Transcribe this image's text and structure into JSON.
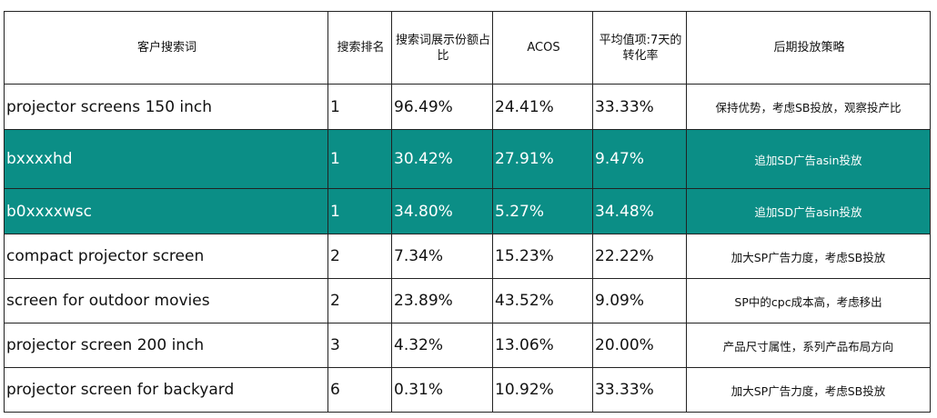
{
  "headers": [
    "客户搜索词",
    "搜索排名",
    "搜索词展示份额占比",
    "ACOS",
    "平均值项:7天的转化率",
    "后期投放策略"
  ],
  "rows": [
    {
      "term": "projector screens 150 inch",
      "rank": "1",
      "share": "96.49%",
      "acos": "24.41%",
      "cvr": "33.33%",
      "strategy": "保持优势，考虑SB投放，观察投产比",
      "highlight": false
    },
    {
      "term": "bxxxxhd",
      "rank": "1",
      "share": "30.42%",
      "acos": "27.91%",
      "cvr": "9.47%",
      "strategy": "追加SD广告asin投放",
      "highlight": true
    },
    {
      "term": "b0xxxxwsc",
      "rank": "1",
      "share": "34.80%",
      "acos": "5.27%",
      "cvr": "34.48%",
      "strategy": "追加SD广告asin投放",
      "highlight": true
    },
    {
      "term": "compact projector screen",
      "rank": "2",
      "share": "7.34%",
      "acos": "15.23%",
      "cvr": "22.22%",
      "strategy": "加大SP广告力度，考虑SB投放",
      "highlight": false
    },
    {
      "term": "screen for outdoor movies",
      "rank": "2",
      "share": "23.89%",
      "acos": "43.52%",
      "cvr": "9.09%",
      "strategy": "SP中的cpc成本高，考虑移出",
      "highlight": false
    },
    {
      "term": "projector screen 200 inch",
      "rank": "3",
      "share": "4.32%",
      "acos": "13.06%",
      "cvr": "20.00%",
      "strategy": "产品尺寸属性，系列产品布局方向",
      "highlight": false
    },
    {
      "term": "projector screen for backyard",
      "rank": "6",
      "share": "0.31%",
      "acos": "10.92%",
      "cvr": "33.33%",
      "strategy": "加大SP广告力度，考虑SB投放",
      "highlight": false
    }
  ],
  "colors": {
    "highlight": "#0b8e86",
    "border": "#222222"
  }
}
